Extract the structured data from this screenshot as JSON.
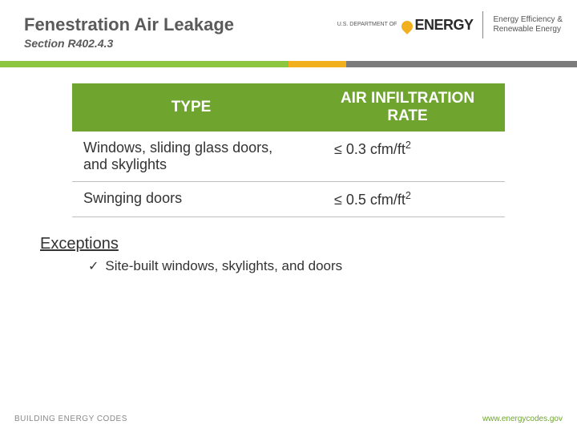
{
  "header": {
    "title": "Fenestration Air Leakage",
    "subtitle": "Section R402.4.3",
    "doe_small": "U.S. DEPARTMENT OF",
    "doe_text": "ENERGY",
    "eere_line1": "Energy Efficiency &",
    "eere_line2": "Renewable Energy"
  },
  "bar": {
    "green": "#8cc63f",
    "yellow": "#f2b01e",
    "gray": "#7b7b7b"
  },
  "table": {
    "header_bg": "#6fa52f",
    "header_color": "#ffffff",
    "header_fontsize": 19,
    "cell_fontsize": 18,
    "columns": [
      "TYPE",
      "AIR INFILTRATION RATE"
    ],
    "rows": [
      {
        "type": "Windows, sliding glass doors, and skylights",
        "rate_prefix": "≤ 0.3 cfm/ft",
        "rate_sup": "2"
      },
      {
        "type": "Swinging doors",
        "rate_prefix": "≤ 0.5 cfm/ft",
        "rate_sup": "2"
      }
    ],
    "border_color": "#bfbfbf"
  },
  "exceptions": {
    "heading": "Exceptions",
    "items": [
      "Site-built windows, skylights, and doors"
    ]
  },
  "footer": {
    "left": "BUILDING ENERGY CODES",
    "right": "www.energycodes.gov",
    "right_color": "#6fa52f"
  },
  "colors": {
    "title": "#5a5a5a",
    "text": "#333333",
    "background": "#ffffff"
  }
}
